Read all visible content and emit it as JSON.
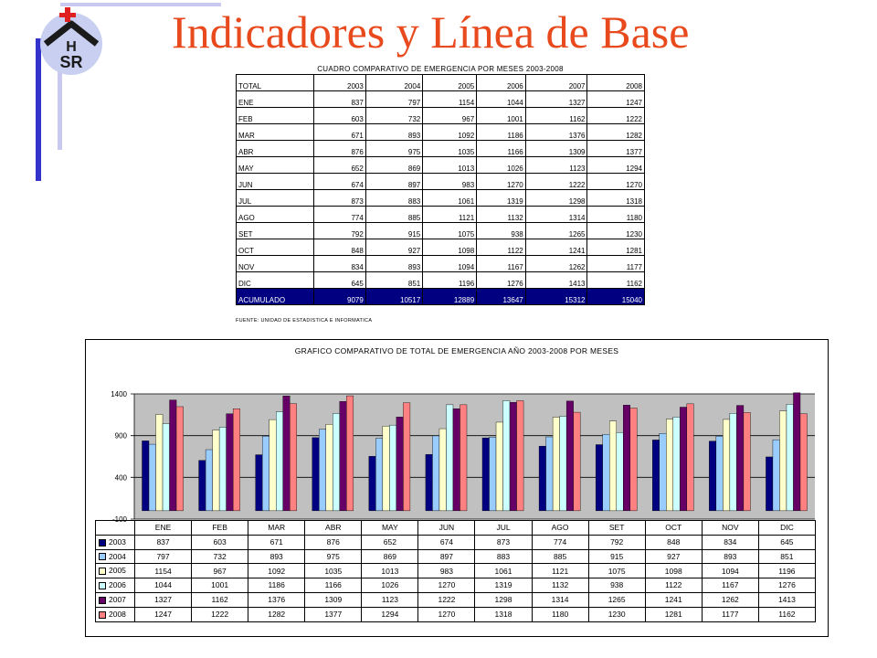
{
  "slide": {
    "title": "Indicadores y Línea de Base",
    "logo_text_1": "H",
    "logo_text_2": "SR"
  },
  "table": {
    "caption": "CUADRO COMPARATIVO DE EMERGENCIA POR MESES 2003-2008",
    "header_label": "TOTAL",
    "years": [
      "2003",
      "2004",
      "2005",
      "2006",
      "2007",
      "2008"
    ],
    "rows": [
      {
        "month": "ENE",
        "values": [
          "837",
          "797",
          "1154",
          "1044",
          "1327",
          "1247"
        ]
      },
      {
        "month": "FEB",
        "values": [
          "603",
          "732",
          "967",
          "1001",
          "1162",
          "1222"
        ]
      },
      {
        "month": "MAR",
        "values": [
          "671",
          "893",
          "1092",
          "1186",
          "1376",
          "1282"
        ]
      },
      {
        "month": "ABR",
        "values": [
          "876",
          "975",
          "1035",
          "1166",
          "1309",
          "1377"
        ]
      },
      {
        "month": "MAY",
        "values": [
          "652",
          "869",
          "1013",
          "1026",
          "1123",
          "1294"
        ]
      },
      {
        "month": "JUN",
        "values": [
          "674",
          "897",
          "983",
          "1270",
          "1222",
          "1270"
        ]
      },
      {
        "month": "JUL",
        "values": [
          "873",
          "883",
          "1061",
          "1319",
          "1298",
          "1318"
        ]
      },
      {
        "month": "AGO",
        "values": [
          "774",
          "885",
          "1121",
          "1132",
          "1314",
          "1180"
        ]
      },
      {
        "month": "SET",
        "values": [
          "792",
          "915",
          "1075",
          "938",
          "1265",
          "1230"
        ]
      },
      {
        "month": "OCT",
        "values": [
          "848",
          "927",
          "1098",
          "1122",
          "1241",
          "1281"
        ]
      },
      {
        "month": "NOV",
        "values": [
          "834",
          "893",
          "1094",
          "1167",
          "1262",
          "1177"
        ]
      },
      {
        "month": "DIC",
        "values": [
          "645",
          "851",
          "1196",
          "1276",
          "1413",
          "1162"
        ]
      }
    ],
    "total_label": "ACUMULADO",
    "totals": [
      "9079",
      "10517",
      "12889",
      "13647",
      "15312",
      "15040"
    ],
    "source": "FUENTE: UNIDAD DE ESTADISTICA E INFORMATICA"
  },
  "chart_data": {
    "type": "bar",
    "title": "GRAFICO COMPARATIVO DE TOTAL DE EMERGENCIA AÑO 2003-2008 POR MESES",
    "categories": [
      "ENE",
      "FEB",
      "MAR",
      "ABR",
      "MAY",
      "JUN",
      "JUL",
      "AGO",
      "SET",
      "OCT",
      "NOV",
      "DIC"
    ],
    "series": [
      {
        "name": "2003",
        "color": "#000080",
        "values": [
          837,
          603,
          671,
          876,
          652,
          674,
          873,
          774,
          792,
          848,
          834,
          645
        ]
      },
      {
        "name": "2004",
        "color": "#99ccff",
        "values": [
          797,
          732,
          893,
          975,
          869,
          897,
          883,
          885,
          915,
          927,
          893,
          851
        ]
      },
      {
        "name": "2005",
        "color": "#ffffcc",
        "values": [
          1154,
          967,
          1092,
          1035,
          1013,
          983,
          1061,
          1121,
          1075,
          1098,
          1094,
          1196
        ]
      },
      {
        "name": "2006",
        "color": "#ccffff",
        "values": [
          1044,
          1001,
          1186,
          1166,
          1026,
          1270,
          1319,
          1132,
          938,
          1122,
          1167,
          1276
        ]
      },
      {
        "name": "2007",
        "color": "#660066",
        "values": [
          1327,
          1162,
          1376,
          1309,
          1123,
          1222,
          1298,
          1314,
          1265,
          1241,
          1262,
          1413
        ]
      },
      {
        "name": "2008",
        "color": "#ff8080",
        "values": [
          1247,
          1222,
          1282,
          1377,
          1294,
          1270,
          1318,
          1180,
          1230,
          1281,
          1177,
          1162
        ]
      }
    ],
    "yticks": [
      "1400",
      "900",
      "400",
      "-100"
    ],
    "ylim": [
      -100,
      1400
    ],
    "grid": "horizontal",
    "legend": "data-table"
  }
}
